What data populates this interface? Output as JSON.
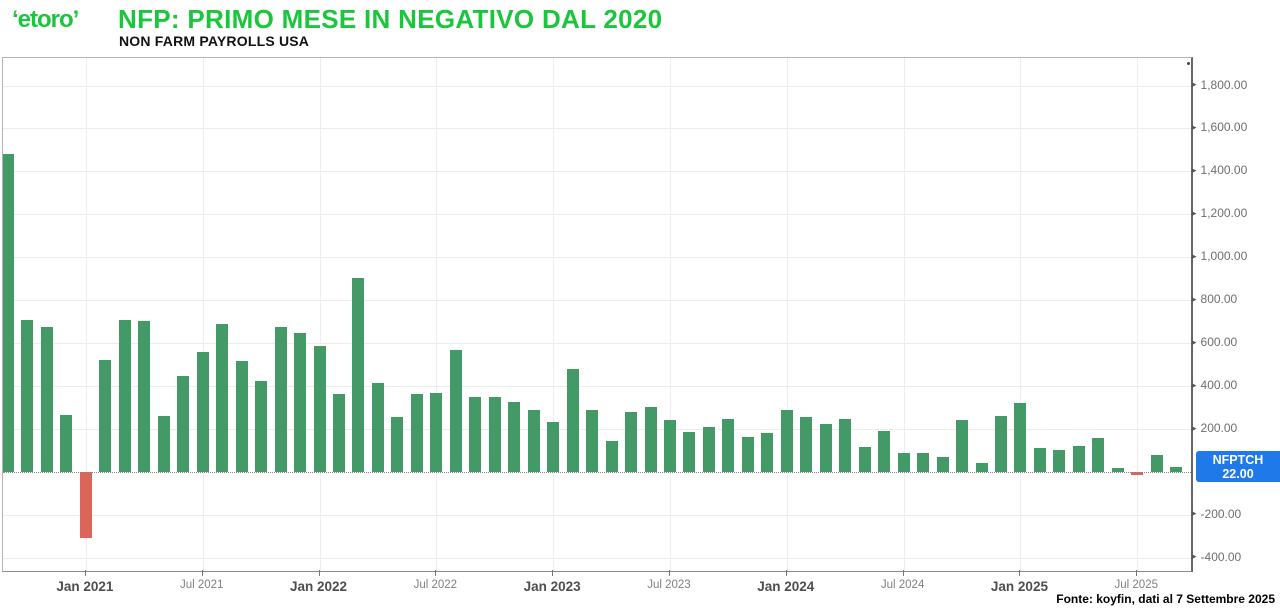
{
  "header": {
    "logo_text": "‘etoro’",
    "title": "NFP: PRIMO MESE IN NEGATIVO DAL 2020",
    "subtitle": "NON FARM PAYROLLS USA"
  },
  "chart_data": {
    "type": "bar",
    "title": "NON FARM PAYROLLS USA",
    "xlabel": "",
    "ylabel": "",
    "ylim": [
      -460,
      1930
    ],
    "grid": true,
    "bar_colors": {
      "positive": "#449A67",
      "negative": "#D9655B"
    },
    "series": [
      {
        "name": "NFPTCH",
        "x": [
          "Aug 2020",
          "Sep 2020",
          "Oct 2020",
          "Nov 2020",
          "Dec 2020",
          "Jan 2021",
          "Feb 2021",
          "Mar 2021",
          "Apr 2021",
          "May 2021",
          "Jun 2021",
          "Jul 2021",
          "Aug 2021",
          "Sep 2021",
          "Oct 2021",
          "Nov 2021",
          "Dec 2021",
          "Jan 2022",
          "Feb 2022",
          "Mar 2022",
          "Apr 2022",
          "May 2022",
          "Jun 2022",
          "Jul 2022",
          "Aug 2022",
          "Sep 2022",
          "Oct 2022",
          "Nov 2022",
          "Dec 2022",
          "Jan 2023",
          "Feb 2023",
          "Mar 2023",
          "Apr 2023",
          "May 2023",
          "Jun 2023",
          "Jul 2023",
          "Aug 2023",
          "Sep 2023",
          "Oct 2023",
          "Nov 2023",
          "Dec 2023",
          "Jan 2024",
          "Feb 2024",
          "Mar 2024",
          "Apr 2024",
          "May 2024",
          "Jun 2024",
          "Jul 2024",
          "Aug 2024",
          "Sep 2024",
          "Oct 2024",
          "Nov 2024",
          "Dec 2024",
          "Jan 2025",
          "Feb 2025",
          "Mar 2025",
          "Apr 2025",
          "May 2025",
          "Jun 2025",
          "Jul 2025",
          "Aug 2025"
        ],
        "values": [
          1480,
          710,
          675,
          264,
          -306,
          520,
          710,
          704,
          263,
          447,
          557,
          689,
          517,
          424,
          677,
          647,
          588,
          364,
          905,
          414,
          254,
          364,
          370,
          568,
          350,
          350,
          324,
          290,
          235,
          482,
          287,
          146,
          278,
          303,
          240,
          184,
          210,
          246,
          165,
          182,
          290,
          256,
          222,
          246,
          118,
          193,
          87,
          88,
          71,
          240,
          44,
          261,
          323,
          111,
          102,
          120,
          158,
          19,
          -13,
          79,
          22
        ]
      }
    ],
    "y_ticks": [
      {
        "label": "1,800.00",
        "value": 1800
      },
      {
        "label": "1,600.00",
        "value": 1600
      },
      {
        "label": "1,400.00",
        "value": 1400
      },
      {
        "label": "1,200.00",
        "value": 1200
      },
      {
        "label": "1,000.00",
        "value": 1000
      },
      {
        "label": "800.00",
        "value": 800
      },
      {
        "label": "600.00",
        "value": 600
      },
      {
        "label": "400.00",
        "value": 400
      },
      {
        "label": "200.00",
        "value": 200
      },
      {
        "label": "-200.00",
        "value": -200
      },
      {
        "label": "-400.00",
        "value": -400
      }
    ],
    "zero_value": 0,
    "x_ticks": [
      {
        "label": "Jan 2021",
        "bar_index": 4,
        "major": true
      },
      {
        "label": "Jul 2021",
        "bar_index": 10,
        "major": false
      },
      {
        "label": "Jan 2022",
        "bar_index": 16,
        "major": true
      },
      {
        "label": "Jul 2022",
        "bar_index": 22,
        "major": false
      },
      {
        "label": "Jan 2023",
        "bar_index": 28,
        "major": true
      },
      {
        "label": "Jul 2023",
        "bar_index": 34,
        "major": false
      },
      {
        "label": "Jan 2024",
        "bar_index": 40,
        "major": true
      },
      {
        "label": "Jul 2024",
        "bar_index": 46,
        "major": false
      },
      {
        "label": "Jan 2025",
        "bar_index": 52,
        "major": true
      },
      {
        "label": "Jul 2025",
        "bar_index": 58,
        "major": false
      }
    ],
    "badge": {
      "series": "NFPTCH",
      "value": "22.00",
      "color": "#1F79E8"
    }
  },
  "footer": {
    "source": "Fonte: koyfin, dati al 7 Settembre 2025"
  },
  "colors": {
    "brand_green": "#1AC63B",
    "bar_green": "#449A67",
    "bar_red": "#D9655B",
    "badge_blue": "#1F79E8"
  }
}
